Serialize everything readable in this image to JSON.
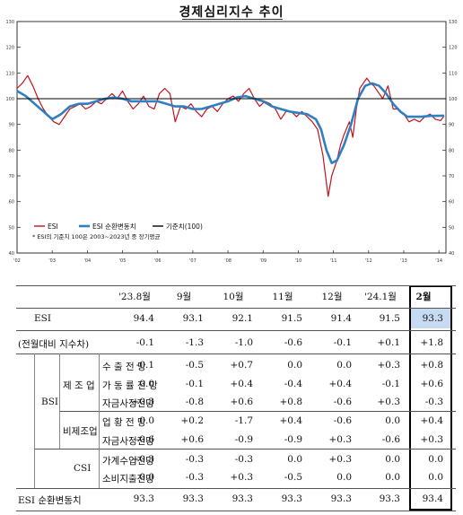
{
  "chart_data": {
    "type": "line",
    "title": "경제심리지수 추이",
    "xlabel": "",
    "ylabel": "",
    "ylim": [
      40,
      130
    ],
    "yticks": [
      40,
      50,
      60,
      70,
      80,
      90,
      100,
      110,
      120,
      130
    ],
    "x_ticks": [
      "'02",
      "'03",
      "'04",
      "'05",
      "'06",
      "'07",
      "'08",
      "'09",
      "'10",
      "'11",
      "'12",
      "'13",
      "'14"
    ],
    "x_tick_labels": [
      "'02",
      "'03",
      "'04",
      "'05",
      "'06",
      "'07",
      "'08",
      "'09",
      "'10",
      "'11",
      "'12",
      "'13",
      "'14"
    ],
    "xlim": [
      2002.0,
      2014.2
    ],
    "reference_line": 100,
    "legend": {
      "placement": "bottom-left",
      "items": [
        "ESI",
        "ESI 순환변동치",
        "기준치(100)"
      ]
    },
    "footnote": "* ESI의 기준치 100은 2003~2023년 중 장기평균",
    "series": [
      {
        "name": "ESI",
        "color": "#c0141c",
        "points": [
          [
            2002.0,
            104
          ],
          [
            2002.15,
            106
          ],
          [
            2002.3,
            109
          ],
          [
            2002.45,
            105
          ],
          [
            2002.6,
            100
          ],
          [
            2002.75,
            96
          ],
          [
            2002.9,
            93
          ],
          [
            2003.05,
            91
          ],
          [
            2003.2,
            90
          ],
          [
            2003.35,
            93
          ],
          [
            2003.5,
            96
          ],
          [
            2003.65,
            97
          ],
          [
            2003.8,
            98
          ],
          [
            2003.95,
            96
          ],
          [
            2004.1,
            97
          ],
          [
            2004.25,
            99
          ],
          [
            2004.4,
            98
          ],
          [
            2004.55,
            100
          ],
          [
            2004.7,
            102
          ],
          [
            2004.85,
            100
          ],
          [
            2005.0,
            103
          ],
          [
            2005.15,
            99
          ],
          [
            2005.3,
            96
          ],
          [
            2005.45,
            98
          ],
          [
            2005.6,
            101
          ],
          [
            2005.75,
            97
          ],
          [
            2005.9,
            96
          ],
          [
            2006.05,
            102
          ],
          [
            2006.2,
            104
          ],
          [
            2006.35,
            102
          ],
          [
            2006.5,
            91
          ],
          [
            2006.65,
            97
          ],
          [
            2006.8,
            96
          ],
          [
            2006.95,
            98
          ],
          [
            2007.1,
            95
          ],
          [
            2007.25,
            93
          ],
          [
            2007.4,
            96
          ],
          [
            2007.55,
            97
          ],
          [
            2007.7,
            95
          ],
          [
            2007.85,
            98
          ],
          [
            2008.0,
            100
          ],
          [
            2008.15,
            101
          ],
          [
            2008.3,
            99
          ],
          [
            2008.45,
            102
          ],
          [
            2008.6,
            104
          ],
          [
            2008.75,
            100
          ],
          [
            2008.9,
            97
          ],
          [
            2009.05,
            99
          ],
          [
            2009.2,
            98
          ],
          [
            2009.35,
            96
          ],
          [
            2009.5,
            92
          ],
          [
            2009.65,
            95
          ],
          [
            2009.8,
            95
          ],
          [
            2009.95,
            93
          ],
          [
            2010.1,
            95
          ],
          [
            2010.25,
            93
          ],
          [
            2010.4,
            91
          ],
          [
            2010.55,
            88
          ],
          [
            2010.7,
            78
          ],
          [
            2010.85,
            62
          ],
          [
            2010.95,
            70
          ],
          [
            2011.1,
            76
          ],
          [
            2011.2,
            82
          ],
          [
            2011.3,
            86
          ],
          [
            2011.45,
            91
          ],
          [
            2011.55,
            85
          ],
          [
            2011.65,
            96
          ],
          [
            2011.75,
            104
          ],
          [
            2011.85,
            106
          ],
          [
            2011.95,
            108
          ],
          [
            2012.05,
            106
          ],
          [
            2012.15,
            105
          ],
          [
            2012.3,
            102
          ],
          [
            2012.4,
            100
          ],
          [
            2012.55,
            105
          ],
          [
            2012.7,
            96
          ],
          [
            2012.85,
            96
          ],
          [
            2013.0,
            94
          ],
          [
            2013.15,
            91
          ],
          [
            2013.3,
            92
          ],
          [
            2013.45,
            91
          ],
          [
            2013.6,
            93
          ],
          [
            2013.75,
            94
          ],
          [
            2013.9,
            92
          ],
          [
            2014.05,
            91.5
          ],
          [
            2014.15,
            93.3
          ]
        ]
      },
      {
        "name": "ESI 순환변동치",
        "color": "#2f7fc1",
        "points": [
          [
            2002.0,
            103
          ],
          [
            2002.25,
            101
          ],
          [
            2002.5,
            98
          ],
          [
            2002.75,
            95
          ],
          [
            2003.0,
            92
          ],
          [
            2003.25,
            94
          ],
          [
            2003.5,
            97
          ],
          [
            2003.75,
            98
          ],
          [
            2004.0,
            98
          ],
          [
            2004.25,
            99
          ],
          [
            2004.5,
            100
          ],
          [
            2004.75,
            100.5
          ],
          [
            2005.0,
            100
          ],
          [
            2005.25,
            99
          ],
          [
            2005.5,
            99
          ],
          [
            2005.75,
            99
          ],
          [
            2006.0,
            99
          ],
          [
            2006.25,
            98
          ],
          [
            2006.5,
            97
          ],
          [
            2006.75,
            97
          ],
          [
            2007.0,
            96
          ],
          [
            2007.25,
            96
          ],
          [
            2007.5,
            97
          ],
          [
            2007.75,
            98
          ],
          [
            2008.0,
            99
          ],
          [
            2008.25,
            100.5
          ],
          [
            2008.5,
            101
          ],
          [
            2008.75,
            100
          ],
          [
            2009.0,
            99
          ],
          [
            2009.25,
            97
          ],
          [
            2009.5,
            96
          ],
          [
            2009.75,
            95
          ],
          [
            2010.0,
            94.5
          ],
          [
            2010.25,
            94
          ],
          [
            2010.5,
            92
          ],
          [
            2010.65,
            88
          ],
          [
            2010.8,
            80
          ],
          [
            2010.95,
            75
          ],
          [
            2011.1,
            76
          ],
          [
            2011.3,
            82
          ],
          [
            2011.5,
            90
          ],
          [
            2011.7,
            100
          ],
          [
            2011.9,
            105
          ],
          [
            2012.1,
            106
          ],
          [
            2012.3,
            105
          ],
          [
            2012.5,
            102
          ],
          [
            2012.7,
            98
          ],
          [
            2012.9,
            95
          ],
          [
            2013.1,
            93
          ],
          [
            2013.3,
            93
          ],
          [
            2013.5,
            93
          ],
          [
            2013.75,
            93.3
          ],
          [
            2014.15,
            93.4
          ]
        ]
      },
      {
        "name": "기준치(100)",
        "color": "#000000",
        "points": [
          [
            2002.0,
            100
          ],
          [
            2014.2,
            100
          ]
        ]
      }
    ]
  },
  "table": {
    "headers": [
      "'23.8월",
      "9월",
      "10월",
      "11월",
      "12월",
      "'24.1월",
      "2월"
    ],
    "rows": [
      {
        "label": "ESI",
        "values": [
          "94.4",
          "93.1",
          "92.1",
          "91.5",
          "91.4",
          "91.5",
          "93.3"
        ]
      },
      {
        "label": "(전월대비 지수차)",
        "values": [
          "-0.1",
          "-1.3",
          "-1.0",
          "-0.6",
          "-0.1",
          "+0.1",
          "+1.8"
        ]
      },
      {
        "group": "BSI",
        "sub": "제조업",
        "label": "수 출 전 망",
        "values": [
          "-0.1",
          "-0.5",
          "+0.7",
          "0.0",
          "0.0",
          "+0.3",
          "+0.8"
        ]
      },
      {
        "group": "BSI",
        "sub": "제조업",
        "label": "가 동 률 전 망",
        "values": [
          "0.0",
          "-0.1",
          "+0.4",
          "-0.4",
          "+0.4",
          "-0.1",
          "+0.6"
        ]
      },
      {
        "group": "BSI",
        "sub": "제조업",
        "label": "자금사정전망",
        "values": [
          "+0.3",
          "-0.8",
          "+0.6",
          "+0.8",
          "-0.6",
          "+0.3",
          "-0.3"
        ]
      },
      {
        "group": "BSI",
        "sub": "비제조업",
        "label": "업 황 전 망",
        "values": [
          "0.0",
          "+0.2",
          "-1.7",
          "+0.4",
          "-0.6",
          "0.0",
          "+0.4"
        ]
      },
      {
        "group": "BSI",
        "sub": "비제조업",
        "label": "자금사정전망",
        "values": [
          "-0.6",
          "+0.6",
          "-0.9",
          "-0.9",
          "+0.3",
          "-0.6",
          "+0.3"
        ]
      },
      {
        "group": "CSI",
        "label": "가계수입전망",
        "values": [
          "+0.3",
          "-0.3",
          "-0.3",
          "0.0",
          "+0.3",
          "0.0",
          "0.0"
        ]
      },
      {
        "group": "CSI",
        "label": "소비지출전망",
        "values": [
          "0.0",
          "-0.3",
          "+0.3",
          "-0.5",
          "0.0",
          "0.0",
          "0.0"
        ]
      },
      {
        "label": "ESI 순환변동치",
        "values": [
          "93.3",
          "93.3",
          "93.3",
          "93.3",
          "93.3",
          "93.3",
          "93.4"
        ]
      }
    ],
    "group_labels": {
      "bsi": "BSI",
      "csi": "CSI",
      "mfg": "제 조 업",
      "nonmfg": "비제조업"
    },
    "highlight_color": "#c6dbf2"
  }
}
